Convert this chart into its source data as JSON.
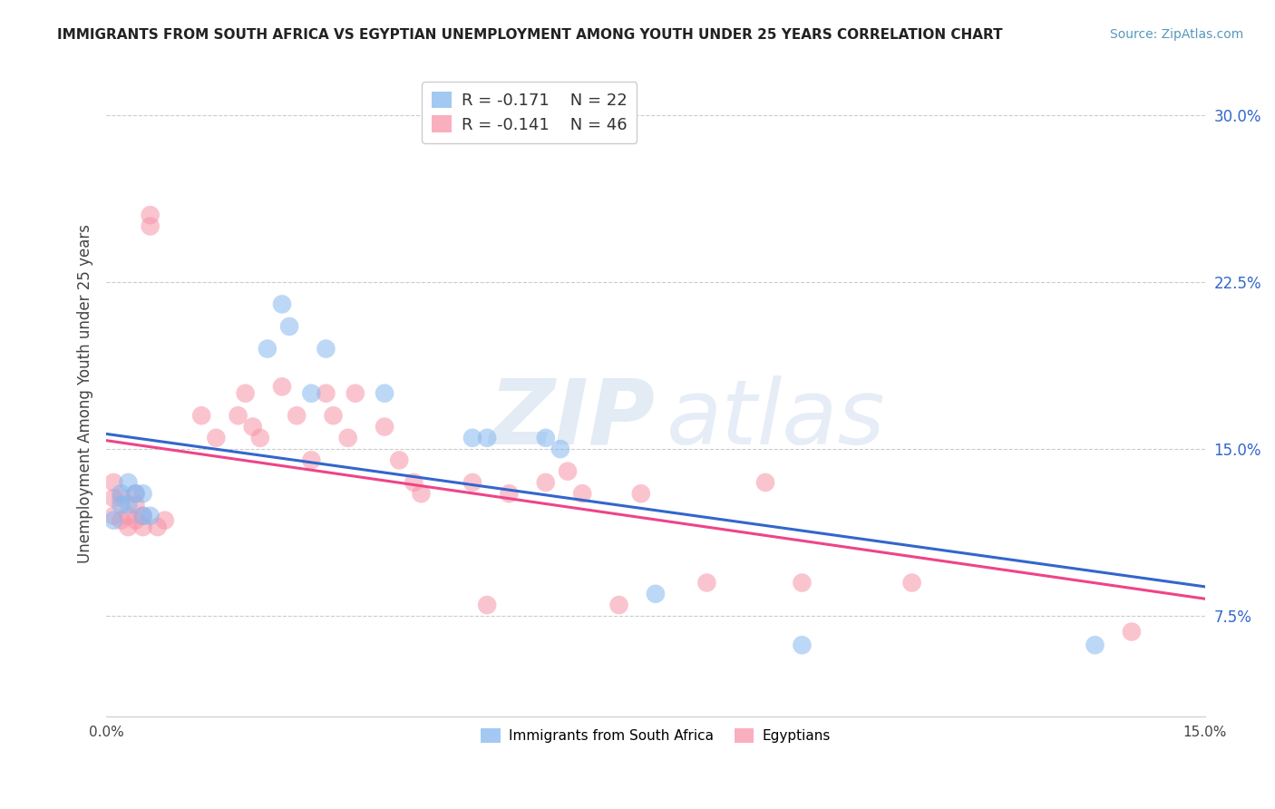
{
  "title": "IMMIGRANTS FROM SOUTH AFRICA VS EGYPTIAN UNEMPLOYMENT AMONG YOUTH UNDER 25 YEARS CORRELATION CHART",
  "source": "Source: ZipAtlas.com",
  "ylabel": "Unemployment Among Youth under 25 years",
  "yticks": [
    0.075,
    0.15,
    0.225,
    0.3
  ],
  "ytick_labels": [
    "7.5%",
    "15.0%",
    "22.5%",
    "30.0%"
  ],
  "xlim": [
    0.0,
    0.15
  ],
  "ylim": [
    0.03,
    0.32
  ],
  "legend_blue_r": "-0.171",
  "legend_blue_n": "22",
  "legend_pink_r": "-0.141",
  "legend_pink_n": "46",
  "legend_blue_label": "Immigrants from South Africa",
  "legend_pink_label": "Egyptians",
  "blue_color": "#85B8F0",
  "pink_color": "#F794A8",
  "trendline_blue": "#3366CC",
  "trendline_pink": "#EE4488",
  "blue_x": [
    0.001,
    0.002,
    0.002,
    0.003,
    0.003,
    0.004,
    0.005,
    0.005,
    0.006,
    0.022,
    0.024,
    0.025,
    0.028,
    0.03,
    0.038,
    0.05,
    0.052,
    0.06,
    0.062,
    0.075,
    0.095,
    0.135
  ],
  "blue_y": [
    0.118,
    0.125,
    0.13,
    0.125,
    0.135,
    0.13,
    0.12,
    0.13,
    0.12,
    0.195,
    0.215,
    0.205,
    0.175,
    0.195,
    0.175,
    0.155,
    0.155,
    0.155,
    0.15,
    0.085,
    0.062,
    0.062
  ],
  "pink_x": [
    0.001,
    0.001,
    0.001,
    0.002,
    0.002,
    0.003,
    0.003,
    0.004,
    0.004,
    0.004,
    0.005,
    0.005,
    0.006,
    0.006,
    0.007,
    0.008,
    0.013,
    0.015,
    0.018,
    0.019,
    0.02,
    0.021,
    0.024,
    0.026,
    0.028,
    0.03,
    0.031,
    0.033,
    0.034,
    0.038,
    0.04,
    0.042,
    0.043,
    0.05,
    0.052,
    0.055,
    0.06,
    0.063,
    0.065,
    0.07,
    0.073,
    0.082,
    0.09,
    0.095,
    0.11,
    0.14
  ],
  "pink_y": [
    0.12,
    0.128,
    0.135,
    0.118,
    0.128,
    0.115,
    0.12,
    0.118,
    0.125,
    0.13,
    0.115,
    0.12,
    0.255,
    0.25,
    0.115,
    0.118,
    0.165,
    0.155,
    0.165,
    0.175,
    0.16,
    0.155,
    0.178,
    0.165,
    0.145,
    0.175,
    0.165,
    0.155,
    0.175,
    0.16,
    0.145,
    0.135,
    0.13,
    0.135,
    0.08,
    0.13,
    0.135,
    0.14,
    0.13,
    0.08,
    0.13,
    0.09,
    0.135,
    0.09,
    0.09,
    0.068
  ],
  "watermark_zip": "ZIP",
  "watermark_atlas": "atlas",
  "background_color": "#FFFFFF",
  "grid_color": "#CCCCCC"
}
